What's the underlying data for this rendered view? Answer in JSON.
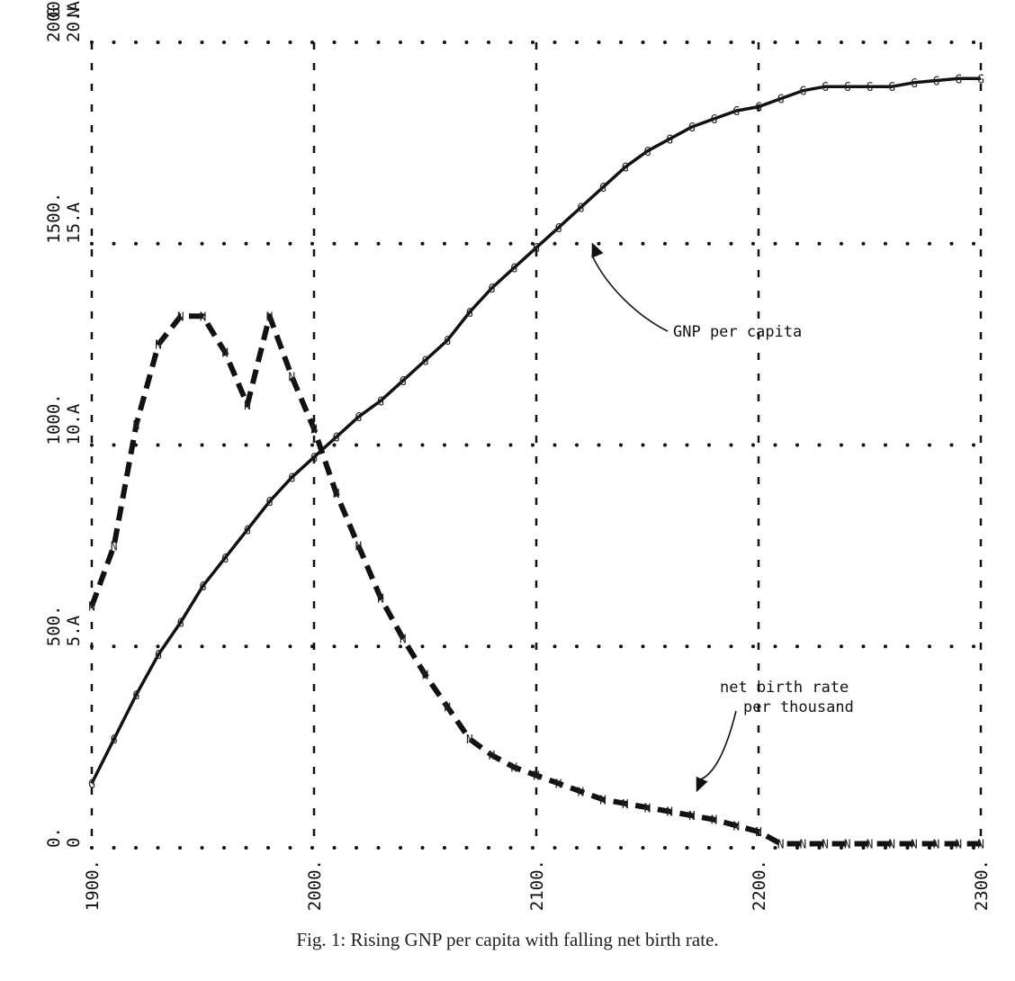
{
  "chart_data": {
    "type": "line",
    "title": "",
    "caption": "Fig. 1: Rising GNP per capita with falling net birth rate.",
    "x_ticks": [
      "1900.",
      "2000.",
      "2100.",
      "2200.",
      "2300."
    ],
    "xlim": [
      1900,
      2300
    ],
    "y_axes": [
      {
        "ticks": [
          "0.",
          "500.",
          "1000.",
          "1500.",
          "2000."
        ],
        "unit_marker": "G",
        "range": [
          0,
          2000
        ]
      },
      {
        "ticks": [
          "0",
          "5.A",
          "10.A",
          "15.A",
          "20.A"
        ],
        "unit_marker": "N",
        "range": [
          0,
          20
        ]
      }
    ],
    "grid": "dotted",
    "series": [
      {
        "name": "GNP per capita",
        "axis": 0,
        "marker": "G",
        "style": "solid",
        "x": [
          1900,
          1910,
          1920,
          1930,
          1940,
          1950,
          1960,
          1970,
          1980,
          1990,
          2000,
          2010,
          2020,
          2030,
          2040,
          2050,
          2060,
          2070,
          2080,
          2090,
          2100,
          2110,
          2120,
          2130,
          2140,
          2150,
          2160,
          2170,
          2180,
          2190,
          2200,
          2210,
          2220,
          2230,
          2240,
          2250,
          2260,
          2270,
          2280,
          2290,
          2300
        ],
        "values": [
          160,
          270,
          380,
          480,
          560,
          650,
          720,
          790,
          860,
          920,
          970,
          1020,
          1070,
          1110,
          1160,
          1210,
          1260,
          1330,
          1390,
          1440,
          1490,
          1540,
          1590,
          1640,
          1690,
          1730,
          1760,
          1790,
          1810,
          1830,
          1840,
          1860,
          1880,
          1890,
          1890,
          1890,
          1890,
          1900,
          1905,
          1910,
          1910
        ]
      },
      {
        "name": "net birth rate per thousand",
        "axis": 1,
        "marker": "N",
        "style": "dashed",
        "x": [
          1900,
          1910,
          1920,
          1930,
          1940,
          1950,
          1960,
          1970,
          1980,
          1990,
          2000,
          2010,
          2020,
          2030,
          2040,
          2050,
          2060,
          2070,
          2080,
          2090,
          2100,
          2110,
          2120,
          2130,
          2140,
          2150,
          2160,
          2170,
          2180,
          2190,
          2200,
          2210,
          2220,
          2230,
          2240,
          2250,
          2260,
          2270,
          2280,
          2290,
          2300
        ],
        "values": [
          6.0,
          7.5,
          10.5,
          12.5,
          13.2,
          13.2,
          12.3,
          11.0,
          13.2,
          11.7,
          10.4,
          8.8,
          7.5,
          6.2,
          5.2,
          4.3,
          3.5,
          2.7,
          2.3,
          2.0,
          1.8,
          1.6,
          1.4,
          1.2,
          1.1,
          1.0,
          0.9,
          0.8,
          0.7,
          0.55,
          0.4,
          0.1,
          0.1,
          0.1,
          0.1,
          0.1,
          0.1,
          0.1,
          0.1,
          0.1,
          0.1
        ]
      }
    ],
    "annotations": [
      {
        "lines": [
          "GNP per capita"
        ],
        "series": 0
      },
      {
        "lines": [
          "net birth rate",
          "per thousand"
        ],
        "series": 1
      }
    ]
  }
}
